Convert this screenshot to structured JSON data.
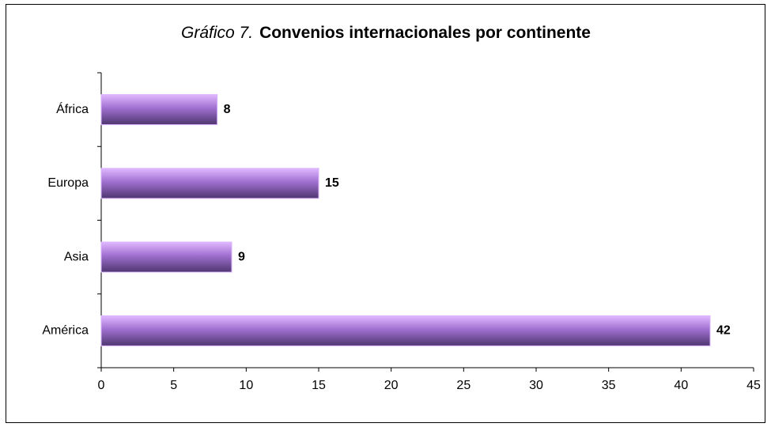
{
  "chart_data": {
    "type": "bar",
    "orientation": "horizontal",
    "title_prefix": "Gráfico 7.",
    "title": "Convenios internacionales por continente",
    "categories": [
      "América",
      "Asia",
      "Europa",
      "África"
    ],
    "values": [
      42,
      9,
      15,
      8
    ],
    "color": "#a070d0",
    "xlim": [
      0,
      45
    ],
    "xticks": [
      0,
      5,
      10,
      15,
      20,
      25,
      30,
      35,
      40,
      45
    ],
    "grid": false
  }
}
